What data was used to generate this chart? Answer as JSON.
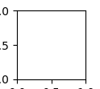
{
  "bg_color": "#ffffff",
  "line_color": "#1a1a1a",
  "line_width": 1.0,
  "font_size": 7.5,
  "fig_width": 1.24,
  "fig_height": 1.11,
  "dpi": 100
}
